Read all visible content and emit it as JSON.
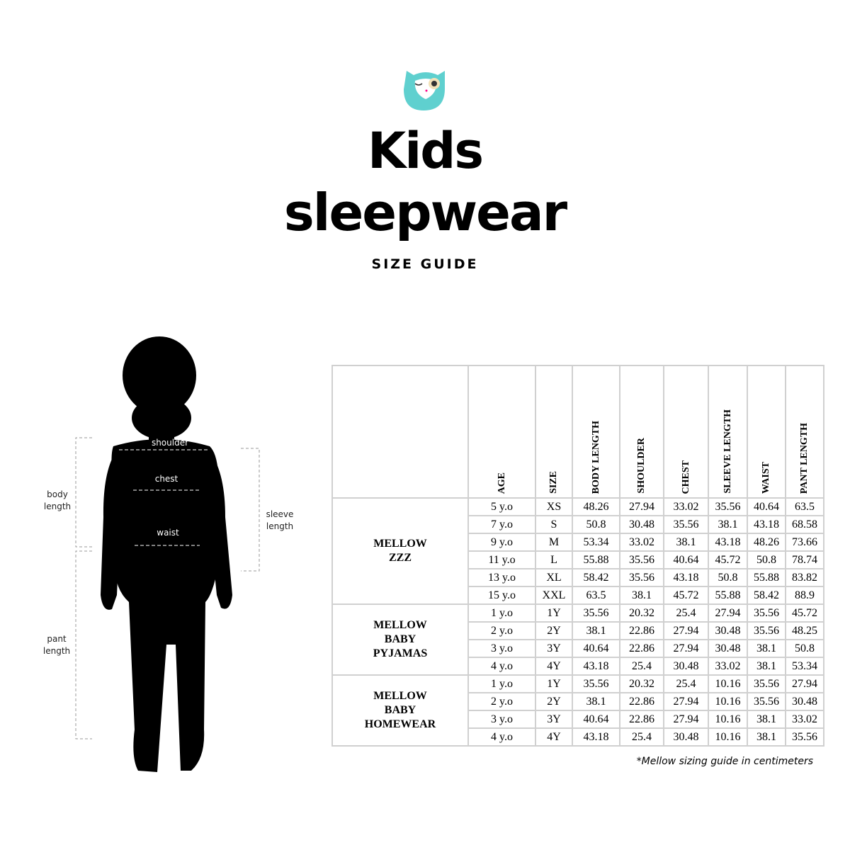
{
  "header": {
    "title_line1": "Kids",
    "title_line2": "sleepwear",
    "subtitle": "SIZE GUIDE",
    "logo": "owl-logo",
    "brand_color": "#5fd0cf"
  },
  "figure": {
    "labels": {
      "shoulder": "shoulder",
      "chest": "chest",
      "waist": "waist",
      "body_length": "body length",
      "sleeve_length": "sleeve length",
      "pant_length": "pant length"
    }
  },
  "table": {
    "columns": [
      "",
      "AGE",
      "SIZE",
      "BODY LENGTH",
      "SHOULDER",
      "CHEST",
      "SLEEVE LENGTH",
      "WAIST",
      "PANT LENGTH"
    ],
    "groups": [
      {
        "name": [
          "MELLOW",
          "ZZZ"
        ],
        "rows": [
          [
            "5 y.o",
            "XS",
            "48.26",
            "27.94",
            "33.02",
            "35.56",
            "40.64",
            "63.5"
          ],
          [
            "7 y.o",
            "S",
            "50.8",
            "30.48",
            "35.56",
            "38.1",
            "43.18",
            "68.58"
          ],
          [
            "9 y.o",
            "M",
            "53.34",
            "33.02",
            "38.1",
            "43.18",
            "48.26",
            "73.66"
          ],
          [
            "11 y.o",
            "L",
            "55.88",
            "35.56",
            "40.64",
            "45.72",
            "50.8",
            "78.74"
          ],
          [
            "13 y.o",
            "XL",
            "58.42",
            "35.56",
            "43.18",
            "50.8",
            "55.88",
            "83.82"
          ],
          [
            "15 y.o",
            "XXL",
            "63.5",
            "38.1",
            "45.72",
            "55.88",
            "58.42",
            "88.9"
          ]
        ]
      },
      {
        "name": [
          "MELLOW",
          "BABY",
          "PYJAMAS"
        ],
        "rows": [
          [
            "1 y.o",
            "1Y",
            "35.56",
            "20.32",
            "25.4",
            "27.94",
            "35.56",
            "45.72"
          ],
          [
            "2 y.o",
            "2Y",
            "38.1",
            "22.86",
            "27.94",
            "30.48",
            "35.56",
            "48.25"
          ],
          [
            "3 y.o",
            "3Y",
            "40.64",
            "22.86",
            "27.94",
            "30.48",
            "38.1",
            "50.8"
          ],
          [
            "4 y.o",
            "4Y",
            "43.18",
            "25.4",
            "30.48",
            "33.02",
            "38.1",
            "53.34"
          ]
        ]
      },
      {
        "name": [
          "MELLOW",
          "BABY",
          "HOMEWEAR"
        ],
        "rows": [
          [
            "1 y.o",
            "1Y",
            "35.56",
            "20.32",
            "25.4",
            "10.16",
            "35.56",
            "27.94"
          ],
          [
            "2 y.o",
            "2Y",
            "38.1",
            "22.86",
            "27.94",
            "10.16",
            "35.56",
            "30.48"
          ],
          [
            "3 y.o",
            "3Y",
            "40.64",
            "22.86",
            "27.94",
            "10.16",
            "38.1",
            "33.02"
          ],
          [
            "4 y.o",
            "4Y",
            "43.18",
            "25.4",
            "30.48",
            "10.16",
            "38.1",
            "35.56"
          ]
        ]
      }
    ]
  },
  "footnote": "*Mellow sizing guide in centimeters"
}
